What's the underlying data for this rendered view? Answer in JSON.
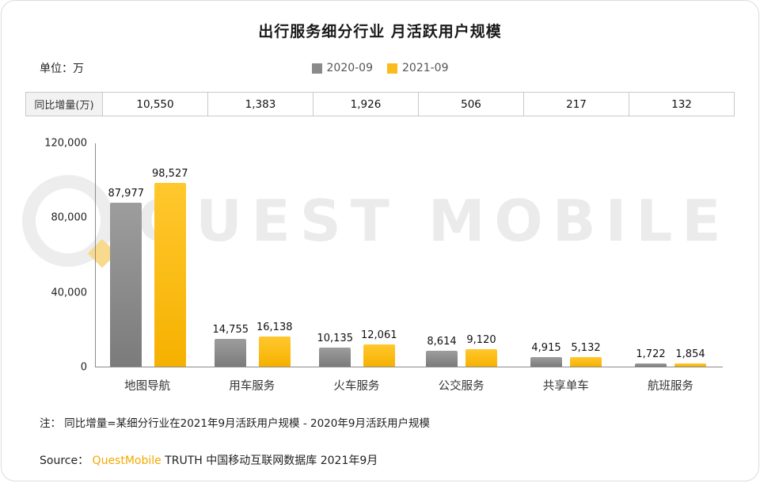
{
  "title": "出行服务细分行业 月活跃用户规模",
  "unit_label": "单位：万",
  "legend": [
    {
      "label": "2020-09",
      "color": "#8a8a8a"
    },
    {
      "label": "2021-09",
      "color": "#fbbb1c"
    }
  ],
  "increment_table": {
    "header": "同比增量(万)",
    "values": [
      "10,550",
      "1,383",
      "1,926",
      "506",
      "217",
      "132"
    ]
  },
  "chart_data": {
    "type": "bar",
    "categories": [
      "地图导航",
      "用车服务",
      "火车服务",
      "公交服务",
      "共享单车",
      "航班服务"
    ],
    "series": [
      {
        "name": "2020-09",
        "color": "#8a8a8a",
        "values": [
          87977,
          14755,
          10135,
          8614,
          4915,
          1722
        ],
        "labels": [
          "87,977",
          "14,755",
          "10,135",
          "8,614",
          "4,915",
          "1,722"
        ]
      },
      {
        "name": "2021-09",
        "color": "#fbbb1c",
        "values": [
          98527,
          16138,
          12061,
          9120,
          5132,
          1854
        ],
        "labels": [
          "98,527",
          "16,138",
          "12,061",
          "9,120",
          "5,132",
          "1,854"
        ]
      }
    ],
    "title": "出行服务细分行业 月活跃用户规模",
    "xlabel": "",
    "ylabel": "单位：万",
    "ylim": [
      0,
      120000
    ],
    "y_ticks": [
      "120,000",
      "80,000",
      "40,000",
      "0"
    ],
    "grid": false,
    "legend_position": "top"
  },
  "watermark": "QUEST MOBILE",
  "note": "注： 同比增量=某细分行业在2021年9月活跃用户规模 - 2020年9月活跃用户规模",
  "source": {
    "prefix": "Source：",
    "brand": "QuestMobile",
    "suffix": " TRUTH 中国移动互联网数据库 2021年9月"
  }
}
